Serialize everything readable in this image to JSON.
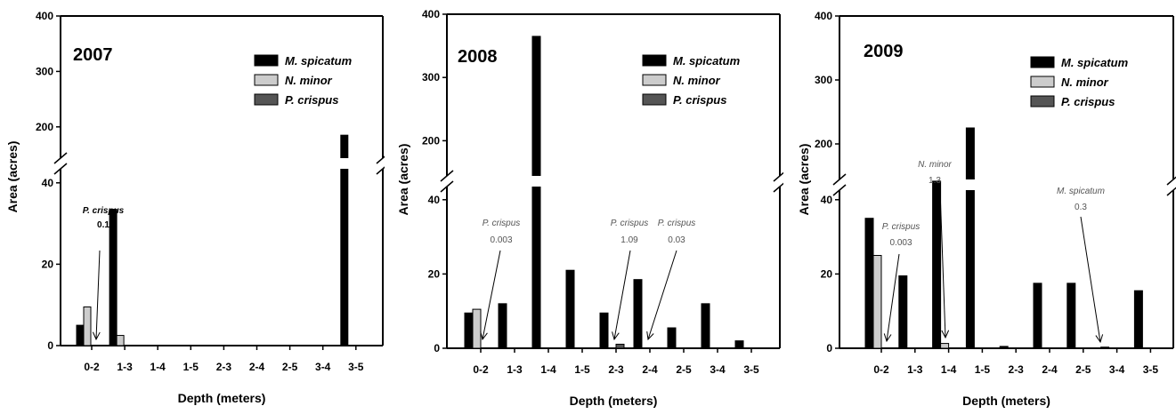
{
  "chart_data": [
    {
      "type": "bar",
      "title": "2007",
      "xlabel": "Depth (meters)",
      "ylabel": "Area (acres)",
      "categories": [
        "0-2",
        "1-3",
        "1-4",
        "1-5",
        "2-3",
        "2-4",
        "2-5",
        "3-4",
        "3-5"
      ],
      "y_axis_break": [
        50,
        150
      ],
      "ylim": [
        0,
        400
      ],
      "y_ticks_lower": [
        "0",
        "20",
        "40"
      ],
      "y_ticks_upper": [
        "200",
        "300",
        "400"
      ],
      "series": [
        {
          "name": "M. spicatum",
          "color": "#000000",
          "values": [
            5,
            33.5,
            0,
            0,
            0,
            0,
            0,
            0,
            185
          ]
        },
        {
          "name": "N. minor",
          "color": "#cccccc",
          "values": [
            9.5,
            2.5,
            0,
            0,
            0,
            0,
            0,
            0,
            0
          ]
        },
        {
          "name": "P. crispus",
          "color": "#555555",
          "values": [
            0.1,
            0,
            0,
            0,
            0,
            0,
            0,
            0,
            0
          ]
        }
      ],
      "annotations": [
        {
          "label": "P. crispus",
          "value": "0.1",
          "category": "0-2",
          "style": "bold"
        }
      ],
      "legend_position": "top-right",
      "grid": false
    },
    {
      "type": "bar",
      "title": "2008",
      "xlabel": "Depth (meters)",
      "ylabel": "Area (acres)",
      "categories": [
        "0-2",
        "1-3",
        "1-4",
        "1-5",
        "2-3",
        "2-4",
        "2-5",
        "3-4",
        "3-5"
      ],
      "y_axis_break": [
        50,
        150
      ],
      "ylim": [
        0,
        400
      ],
      "y_ticks_lower": [
        "0",
        "20",
        "40"
      ],
      "y_ticks_upper": [
        "200",
        "300",
        "400"
      ],
      "series": [
        {
          "name": "M. spicatum",
          "color": "#000000",
          "values": [
            9.5,
            12,
            365,
            21,
            9.5,
            18.5,
            5.5,
            12,
            2
          ]
        },
        {
          "name": "N. minor",
          "color": "#cccccc",
          "values": [
            10.5,
            0,
            0,
            0,
            0,
            0,
            0,
            0,
            0
          ]
        },
        {
          "name": "P. crispus",
          "color": "#555555",
          "values": [
            0.003,
            0,
            0,
            0,
            1.09,
            0.03,
            0,
            0,
            0
          ]
        }
      ],
      "annotations": [
        {
          "label": "P. crispus",
          "value": "0.003",
          "category": "0-2",
          "style": "light"
        },
        {
          "label": "P. crispus",
          "value": "1.09",
          "category": "2-3",
          "style": "light"
        },
        {
          "label": "P. crispus",
          "value": "0.03",
          "category": "2-4",
          "style": "light"
        }
      ],
      "legend_position": "top-right",
      "grid": false
    },
    {
      "type": "bar",
      "title": "2009",
      "xlabel": "Depth (meters)",
      "ylabel": "Area (acres)",
      "categories": [
        "0-2",
        "1-3",
        "1-4",
        "1-5",
        "2-3",
        "2-4",
        "2-5",
        "3-4",
        "3-5"
      ],
      "y_axis_break": [
        50,
        150
      ],
      "ylim": [
        0,
        400
      ],
      "y_ticks_lower": [
        "0",
        "20",
        "40"
      ],
      "y_ticks_upper": [
        "200",
        "300",
        "400"
      ],
      "series": [
        {
          "name": "M. spicatum",
          "color": "#000000",
          "values": [
            35,
            19.5,
            45,
            225,
            0.5,
            17.5,
            17.5,
            0.3,
            15.5
          ]
        },
        {
          "name": "N. minor",
          "color": "#cccccc",
          "values": [
            25,
            0,
            1.3,
            0,
            0,
            0,
            0,
            0,
            0
          ]
        },
        {
          "name": "P. crispus",
          "color": "#555555",
          "values": [
            0.003,
            0,
            0,
            0,
            0,
            0,
            0,
            0,
            0
          ]
        }
      ],
      "annotations": [
        {
          "label": "P. crispus",
          "value": "0.003",
          "category": "0-2",
          "style": "light"
        },
        {
          "label": "N. minor",
          "value": "1.3",
          "category": "1-4",
          "style": "light"
        },
        {
          "label": "M. spicatum",
          "value": "0.3",
          "category": "3-4",
          "style": "light"
        }
      ],
      "legend_position": "top-right",
      "grid": false
    }
  ]
}
